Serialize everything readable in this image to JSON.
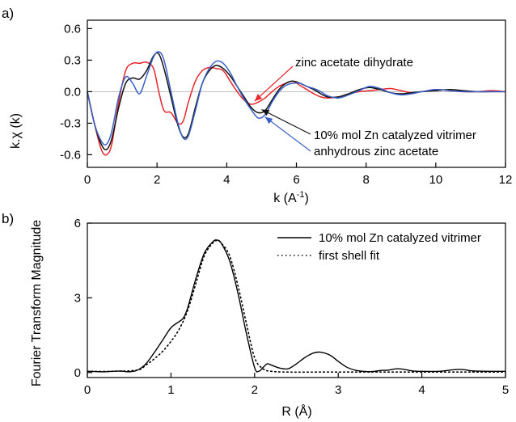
{
  "chart_data": [
    {
      "panel": "a)",
      "type": "line",
      "xlabel_main": "k (A",
      "xlabel_sup": "-1",
      "xlabel_end": ")",
      "ylabel": "k.χ (k)",
      "xlim": [
        0,
        12
      ],
      "ylim": [
        -0.72,
        0.68
      ],
      "xticks": [
        0,
        2,
        4,
        6,
        8,
        10,
        12
      ],
      "xtick_labels": [
        "0",
        "2",
        "4",
        "6",
        "8",
        "10",
        "12"
      ],
      "yticks": [
        -0.6,
        -0.3,
        0.0,
        0.3,
        0.6
      ],
      "ytick_labels": [
        "-0.6",
        "-0.3",
        "0.0",
        "0.3",
        "0.6"
      ],
      "series": [
        {
          "name": "zinc acetate dihydrate",
          "color": "#e8262c",
          "x": [
            0,
            0.2,
            0.4,
            0.55,
            0.7,
            0.9,
            1.1,
            1.3,
            1.5,
            1.7,
            1.9,
            2.05,
            2.2,
            2.4,
            2.6,
            2.75,
            2.9,
            3.1,
            3.3,
            3.5,
            3.7,
            3.9,
            4.1,
            4.3,
            4.5,
            4.7,
            4.9,
            5.1,
            5.3,
            5.5,
            5.7,
            5.9,
            6.1,
            6.3,
            6.5,
            6.7,
            6.9,
            7.2,
            7.5,
            7.8,
            8.1,
            8.4,
            8.7,
            9.0,
            9.3,
            9.6,
            10.0,
            10.4,
            10.8,
            11.2,
            11.6,
            12.0
          ],
          "y": [
            0.0,
            -0.3,
            -0.55,
            -0.6,
            -0.5,
            -0.1,
            0.2,
            0.27,
            0.27,
            0.28,
            0.22,
            0.0,
            -0.18,
            -0.2,
            -0.3,
            -0.28,
            -0.1,
            0.1,
            0.2,
            0.23,
            0.22,
            0.2,
            0.1,
            0.0,
            -0.08,
            -0.12,
            -0.1,
            -0.06,
            0.0,
            0.05,
            0.08,
            0.1,
            0.06,
            0.02,
            -0.02,
            -0.05,
            -0.06,
            -0.05,
            -0.02,
            0.0,
            0.01,
            0.02,
            0.03,
            0.01,
            -0.01,
            0.0,
            0.02,
            0.01,
            0.0,
            0.0,
            0.01,
            0.0
          ]
        },
        {
          "name": "10% mol Zn catalyzed vitrimer",
          "color": "#111111",
          "x": [
            0,
            0.2,
            0.4,
            0.55,
            0.7,
            0.9,
            1.1,
            1.3,
            1.5,
            1.7,
            1.9,
            2.05,
            2.2,
            2.4,
            2.6,
            2.75,
            2.9,
            3.1,
            3.3,
            3.5,
            3.7,
            3.9,
            4.1,
            4.3,
            4.5,
            4.7,
            4.9,
            5.1,
            5.3,
            5.5,
            5.7,
            5.9,
            6.1,
            6.3,
            6.5,
            6.7,
            6.9,
            7.2,
            7.5,
            7.8,
            8.1,
            8.4,
            8.7,
            9.0,
            9.3,
            9.6,
            10.0,
            10.4,
            10.8,
            11.2,
            11.6,
            12.0
          ],
          "y": [
            0.0,
            -0.3,
            -0.5,
            -0.55,
            -0.45,
            -0.15,
            0.08,
            0.13,
            0.12,
            0.2,
            0.34,
            0.36,
            0.22,
            -0.05,
            -0.32,
            -0.43,
            -0.4,
            -0.15,
            0.08,
            0.2,
            0.25,
            0.22,
            0.15,
            0.05,
            -0.05,
            -0.15,
            -0.2,
            -0.18,
            -0.08,
            0.02,
            0.08,
            0.1,
            0.08,
            0.05,
            0.02,
            -0.02,
            -0.05,
            -0.05,
            -0.02,
            0.02,
            0.04,
            0.02,
            -0.01,
            -0.02,
            -0.01,
            0.0,
            0.01,
            0.02,
            0.01,
            0.0,
            0.0,
            0.0
          ]
        },
        {
          "name": "anhydrous zinc acetate",
          "color": "#3a5fc8",
          "x": [
            0,
            0.2,
            0.4,
            0.55,
            0.7,
            0.9,
            1.1,
            1.3,
            1.5,
            1.7,
            1.9,
            2.05,
            2.2,
            2.4,
            2.6,
            2.75,
            2.9,
            3.1,
            3.3,
            3.5,
            3.7,
            3.9,
            4.1,
            4.3,
            4.5,
            4.7,
            4.9,
            5.1,
            5.3,
            5.5,
            5.7,
            5.9,
            6.1,
            6.3,
            6.5,
            6.7,
            6.9,
            7.2,
            7.5,
            7.8,
            8.1,
            8.4,
            8.7,
            9.0,
            9.3,
            9.6,
            10.0,
            10.4,
            10.8,
            11.2,
            11.6,
            12.0
          ],
          "y": [
            0.0,
            -0.3,
            -0.47,
            -0.5,
            -0.38,
            -0.05,
            0.14,
            0.08,
            -0.02,
            0.15,
            0.33,
            0.38,
            0.3,
            0.0,
            -0.3,
            -0.44,
            -0.42,
            -0.18,
            0.08,
            0.22,
            0.29,
            0.27,
            0.18,
            0.05,
            -0.07,
            -0.17,
            -0.25,
            -0.22,
            -0.1,
            0.0,
            0.06,
            0.08,
            0.08,
            0.05,
            0.03,
            0.0,
            -0.04,
            -0.06,
            -0.03,
            0.01,
            0.05,
            0.03,
            -0.01,
            -0.03,
            -0.02,
            0.0,
            0.02,
            0.01,
            0.0,
            0.0,
            0.0,
            0.0
          ]
        }
      ],
      "annotations": [
        {
          "text": "zinc acetate dihydrate",
          "color": "#e8262c",
          "target_x": 4.8,
          "target_y": -0.09
        },
        {
          "text": "10% mol Zn catalyzed vitrimer",
          "color": "#111111",
          "target_x": 5.0,
          "target_y": -0.17
        },
        {
          "text": "anhydrous zinc acetate",
          "color": "#3a5fc8",
          "target_x": 5.1,
          "target_y": -0.24
        }
      ]
    },
    {
      "panel": "b)",
      "type": "line",
      "xlabel": "R (Å)",
      "ylabel": "Fourier Transform Magnitude",
      "xlim": [
        0,
        5
      ],
      "ylim": [
        -0.2,
        6.0
      ],
      "xticks": [
        0,
        1,
        2,
        3,
        4,
        5
      ],
      "xtick_labels": [
        "0",
        "1",
        "2",
        "3",
        "4",
        "5"
      ],
      "yticks": [
        0,
        3,
        6
      ],
      "ytick_labels": [
        "0",
        "3",
        "6"
      ],
      "series": [
        {
          "name": "10% mol Zn catalyzed vitrimer",
          "style": "solid",
          "color": "#000000",
          "x": [
            0,
            0.1,
            0.2,
            0.3,
            0.4,
            0.5,
            0.6,
            0.7,
            0.8,
            0.9,
            1.0,
            1.1,
            1.15,
            1.2,
            1.3,
            1.4,
            1.5,
            1.55,
            1.6,
            1.7,
            1.8,
            1.9,
            2.0,
            2.05,
            2.1,
            2.15,
            2.2,
            2.3,
            2.4,
            2.5,
            2.6,
            2.7,
            2.78,
            2.9,
            3.0,
            3.1,
            3.2,
            3.3,
            3.4,
            3.5,
            3.6,
            3.7,
            3.8,
            3.9,
            4.0,
            4.2,
            4.4,
            4.5,
            4.6,
            4.8,
            5.0
          ],
          "y": [
            0.05,
            0.04,
            0.03,
            0.05,
            0.06,
            0.03,
            0.1,
            0.35,
            0.8,
            1.3,
            1.8,
            2.05,
            2.2,
            2.6,
            3.8,
            4.8,
            5.25,
            5.32,
            5.2,
            4.5,
            3.2,
            1.6,
            0.2,
            0.05,
            0.2,
            0.35,
            0.3,
            0.18,
            0.15,
            0.35,
            0.6,
            0.78,
            0.82,
            0.7,
            0.45,
            0.22,
            0.1,
            0.05,
            0.04,
            0.08,
            0.1,
            0.15,
            0.12,
            0.06,
            0.05,
            0.05,
            0.12,
            0.12,
            0.07,
            0.05,
            0.05
          ]
        },
        {
          "name": "first shell fit",
          "style": "dotted",
          "color": "#000000",
          "x": [
            0,
            0.3,
            0.6,
            0.7,
            0.8,
            0.9,
            1.0,
            1.1,
            1.2,
            1.3,
            1.4,
            1.5,
            1.55,
            1.6,
            1.7,
            1.8,
            1.9,
            2.0,
            2.1,
            2.2,
            2.4,
            2.8,
            3.2,
            3.6,
            4.0,
            4.5,
            5.0
          ],
          "y": [
            0.05,
            0.05,
            0.1,
            0.3,
            0.55,
            0.85,
            1.25,
            1.75,
            2.5,
            3.6,
            4.7,
            5.2,
            5.3,
            5.2,
            4.7,
            3.5,
            2.0,
            0.6,
            0.15,
            0.05,
            0.02,
            0.02,
            0.02,
            0.02,
            0.02,
            0.02,
            0.02
          ]
        }
      ],
      "legend": "top-right"
    }
  ]
}
